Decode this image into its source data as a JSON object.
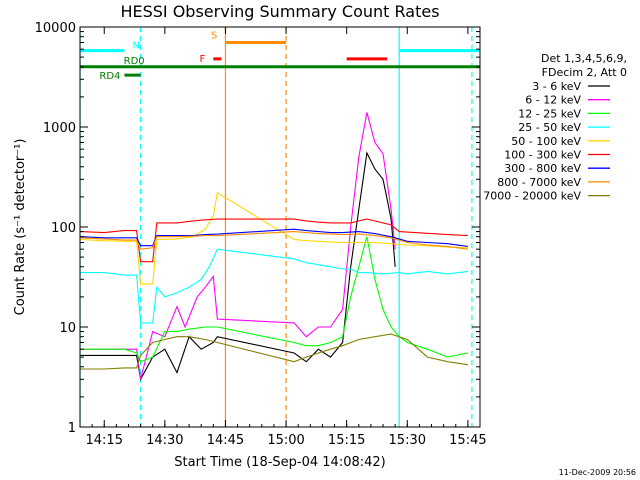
{
  "chart_data": {
    "type": "line",
    "title": "HESSI Observing Summary Count Rates",
    "xlabel": "Start Time (18-Sep-04 14:08:42)",
    "ylabel": "Count Rate (s⁻¹ detector⁻¹)",
    "yscale": "log",
    "ylim": [
      1,
      10000
    ],
    "xlim": [
      "14:09",
      "15:48"
    ],
    "x_ticks": [
      "14:15",
      "14:30",
      "14:45",
      "15:00",
      "15:15",
      "15:30",
      "15:45"
    ],
    "y_ticks": [
      "1",
      "10",
      "100",
      "1000",
      "10000"
    ],
    "legend_header": [
      "Det 1,3,4,5,6,9,",
      "FDecim 2, Att 0"
    ],
    "legend_position": "right",
    "timestamp": "11-Dec-2009 20:56",
    "series": [
      {
        "name": "3 - 6 keV",
        "color": "#000000",
        "points": [
          [
            "14:09",
            5.2
          ],
          [
            "14:20",
            5.2
          ],
          [
            "14:23",
            5.2
          ],
          [
            "14:24",
            3.0
          ],
          [
            "14:27",
            5
          ],
          [
            "14:30",
            6
          ],
          [
            "14:33",
            3.5
          ],
          [
            "14:36",
            8
          ],
          [
            "14:39",
            6
          ],
          [
            "14:42",
            7
          ],
          [
            "14:43",
            8
          ],
          [
            "15:02",
            5.5
          ],
          [
            "15:05",
            4.5
          ],
          [
            "15:08",
            6
          ],
          [
            "15:11",
            5
          ],
          [
            "15:14",
            7
          ],
          [
            "15:16",
            40
          ],
          [
            "15:18",
            150
          ],
          [
            "15:20",
            550
          ],
          [
            "15:22",
            380
          ],
          [
            "15:24",
            300
          ],
          [
            "15:25",
            190
          ],
          [
            "15:26",
            120
          ],
          [
            "15:27",
            40
          ]
        ]
      },
      {
        "name": "6 - 12 keV",
        "color": "#ff00ff",
        "points": [
          [
            "14:09",
            6
          ],
          [
            "14:20",
            6
          ],
          [
            "14:23",
            6
          ],
          [
            "14:24",
            3.0
          ],
          [
            "14:27",
            9
          ],
          [
            "14:30",
            8
          ],
          [
            "14:33",
            16
          ],
          [
            "14:35",
            10
          ],
          [
            "14:38",
            20
          ],
          [
            "14:40",
            25
          ],
          [
            "14:42",
            32
          ],
          [
            "14:43",
            12
          ],
          [
            "15:02",
            11
          ],
          [
            "15:05",
            8
          ],
          [
            "15:08",
            10
          ],
          [
            "15:11",
            10
          ],
          [
            "15:14",
            15
          ],
          [
            "15:16",
            100
          ],
          [
            "15:18",
            500
          ],
          [
            "15:20",
            1400
          ],
          [
            "15:22",
            700
          ],
          [
            "15:24",
            540
          ],
          [
            "15:26",
            150
          ],
          [
            "15:27",
            60
          ]
        ]
      },
      {
        "name": "12 - 25 keV",
        "color": "#00ff00",
        "points": [
          [
            "14:09",
            6
          ],
          [
            "14:20",
            6
          ],
          [
            "14:23",
            5.5
          ],
          [
            "14:24",
            4.5
          ],
          [
            "14:27",
            5
          ],
          [
            "14:30",
            9
          ],
          [
            "14:33",
            9
          ],
          [
            "14:36",
            9.5
          ],
          [
            "14:40",
            10
          ],
          [
            "14:43",
            10
          ],
          [
            "15:02",
            7
          ],
          [
            "15:05",
            6.5
          ],
          [
            "15:08",
            6.5
          ],
          [
            "15:11",
            7
          ],
          [
            "15:14",
            8
          ],
          [
            "15:16",
            20
          ],
          [
            "15:18",
            40
          ],
          [
            "15:20",
            80
          ],
          [
            "15:22",
            30
          ],
          [
            "15:24",
            15
          ],
          [
            "15:26",
            10
          ],
          [
            "15:28",
            8
          ],
          [
            "15:30",
            7
          ],
          [
            "15:35",
            6
          ],
          [
            "15:40",
            5
          ],
          [
            "15:45",
            5.5
          ]
        ]
      },
      {
        "name": "25 - 50 keV",
        "color": "#00ffff",
        "points": [
          [
            "14:09",
            35
          ],
          [
            "14:15",
            35
          ],
          [
            "14:20",
            33
          ],
          [
            "14:23",
            33
          ],
          [
            "14:24",
            11
          ],
          [
            "14:27",
            11
          ],
          [
            "14:28",
            25
          ],
          [
            "14:30",
            20
          ],
          [
            "14:33",
            22
          ],
          [
            "14:36",
            25
          ],
          [
            "14:39",
            30
          ],
          [
            "14:41",
            40
          ],
          [
            "14:43",
            60
          ],
          [
            "15:02",
            48
          ],
          [
            "15:05",
            44
          ],
          [
            "15:08",
            42
          ],
          [
            "15:11",
            40
          ],
          [
            "15:14",
            38
          ],
          [
            "15:16",
            38
          ],
          [
            "15:18",
            35
          ],
          [
            "15:20",
            35
          ],
          [
            "15:24",
            34
          ],
          [
            "15:28",
            35
          ],
          [
            "15:30",
            34
          ],
          [
            "15:35",
            36
          ],
          [
            "15:40",
            34
          ],
          [
            "15:45",
            36
          ]
        ]
      },
      {
        "name": "50 - 100 keV",
        "color": "#ffd700",
        "points": [
          [
            "14:09",
            75
          ],
          [
            "14:15",
            73
          ],
          [
            "14:20",
            72
          ],
          [
            "14:23",
            72
          ],
          [
            "14:24",
            27
          ],
          [
            "14:27",
            27
          ],
          [
            "14:28",
            75
          ],
          [
            "14:33",
            76
          ],
          [
            "14:37",
            80
          ],
          [
            "14:40",
            95
          ],
          [
            "14:42",
            130
          ],
          [
            "14:43",
            220
          ],
          [
            "15:02",
            75
          ],
          [
            "15:05",
            73
          ],
          [
            "15:08",
            72
          ],
          [
            "15:11",
            71
          ],
          [
            "15:14",
            70
          ],
          [
            "15:16",
            70
          ],
          [
            "15:18",
            70
          ],
          [
            "15:22",
            70
          ],
          [
            "15:26",
            68
          ],
          [
            "15:30",
            66
          ],
          [
            "15:35",
            65
          ],
          [
            "15:40",
            63
          ],
          [
            "15:45",
            62
          ]
        ]
      },
      {
        "name": "100 - 300 keV",
        "color": "#ff0000",
        "points": [
          [
            "14:09",
            90
          ],
          [
            "14:15",
            88
          ],
          [
            "14:20",
            92
          ],
          [
            "14:23",
            92
          ],
          [
            "14:24",
            45
          ],
          [
            "14:27",
            45
          ],
          [
            "14:28",
            110
          ],
          [
            "14:33",
            110
          ],
          [
            "14:37",
            115
          ],
          [
            "14:40",
            118
          ],
          [
            "14:43",
            120
          ],
          [
            "15:02",
            120
          ],
          [
            "15:05",
            115
          ],
          [
            "15:08",
            112
          ],
          [
            "15:11",
            110
          ],
          [
            "15:14",
            110
          ],
          [
            "15:16",
            110
          ],
          [
            "15:18",
            115
          ],
          [
            "15:20",
            120
          ],
          [
            "15:22",
            115
          ],
          [
            "15:26",
            105
          ],
          [
            "15:28",
            90
          ],
          [
            "15:32",
            88
          ],
          [
            "15:36",
            86
          ],
          [
            "15:40",
            84
          ],
          [
            "15:45",
            82
          ]
        ]
      },
      {
        "name": "300 - 800 keV",
        "color": "#0000ff",
        "points": [
          [
            "14:09",
            80
          ],
          [
            "14:15",
            78
          ],
          [
            "14:20",
            78
          ],
          [
            "14:23",
            78
          ],
          [
            "14:24",
            65
          ],
          [
            "14:27",
            65
          ],
          [
            "14:28",
            82
          ],
          [
            "14:33",
            82
          ],
          [
            "14:37",
            82
          ],
          [
            "14:40",
            84
          ],
          [
            "14:43",
            85
          ],
          [
            "15:02",
            95
          ],
          [
            "15:05",
            92
          ],
          [
            "15:08",
            90
          ],
          [
            "15:11",
            88
          ],
          [
            "15:14",
            88
          ],
          [
            "15:18",
            90
          ],
          [
            "15:22",
            86
          ],
          [
            "15:26",
            80
          ],
          [
            "15:30",
            72
          ],
          [
            "15:35",
            70
          ],
          [
            "15:40",
            68
          ],
          [
            "15:45",
            64
          ]
        ]
      },
      {
        "name": "800 - 7000 keV",
        "color": "#ff8c00",
        "points": [
          [
            "14:09",
            78
          ],
          [
            "14:15",
            76
          ],
          [
            "14:20",
            74
          ],
          [
            "14:23",
            74
          ],
          [
            "14:24",
            60
          ],
          [
            "14:27",
            62
          ],
          [
            "14:28",
            80
          ],
          [
            "14:33",
            80
          ],
          [
            "14:37",
            81
          ],
          [
            "14:40",
            82
          ],
          [
            "14:43",
            82
          ],
          [
            "15:02",
            90
          ],
          [
            "15:05",
            88
          ],
          [
            "15:08",
            86
          ],
          [
            "15:11",
            85
          ],
          [
            "15:14",
            84
          ],
          [
            "15:18",
            85
          ],
          [
            "15:22",
            82
          ],
          [
            "15:26",
            78
          ],
          [
            "15:30",
            70
          ],
          [
            "15:35",
            66
          ],
          [
            "15:40",
            64
          ],
          [
            "15:45",
            60
          ]
        ]
      },
      {
        "name": "7000 - 20000 keV",
        "color": "#808000",
        "points": [
          [
            "14:09",
            3.8
          ],
          [
            "14:15",
            3.8
          ],
          [
            "14:20",
            3.9
          ],
          [
            "14:23",
            3.9
          ],
          [
            "14:24",
            5.2
          ],
          [
            "14:27",
            7
          ],
          [
            "14:30",
            7.5
          ],
          [
            "14:33",
            8
          ],
          [
            "14:36",
            8
          ],
          [
            "14:40",
            7.5
          ],
          [
            "14:43",
            7
          ],
          [
            "15:02",
            4.5
          ],
          [
            "15:05",
            5
          ],
          [
            "15:08",
            5.5
          ],
          [
            "15:11",
            6
          ],
          [
            "15:14",
            6.5
          ],
          [
            "15:18",
            7.5
          ],
          [
            "15:22",
            8
          ],
          [
            "15:26",
            8.5
          ],
          [
            "15:30",
            7.5
          ],
          [
            "15:35",
            5
          ],
          [
            "15:40",
            4.5
          ],
          [
            "15:45",
            4.2
          ]
        ]
      }
    ],
    "flag_bars": [
      {
        "label": "N",
        "color": "#00ffff",
        "segments": [
          [
            "14:09",
            "14:20"
          ],
          [
            "15:28",
            "15:48"
          ]
        ],
        "level": 5800
      },
      {
        "label": "S",
        "color": "#ff8c00",
        "segments": [
          [
            "14:45",
            "15:00"
          ]
        ],
        "level": 7000
      },
      {
        "label": "F",
        "color": "#ff0000",
        "segments": [
          [
            "14:42",
            "14:44"
          ],
          [
            "15:15",
            "15:25"
          ]
        ],
        "level": 4800
      },
      {
        "label": "RD0",
        "color": "#008000",
        "segments": [
          [
            "14:09",
            "15:48"
          ]
        ],
        "level": 4000
      },
      {
        "label": "RD4",
        "color": "#008000",
        "segments": [
          [
            "14:20",
            "14:24"
          ]
        ],
        "level": 3300
      }
    ],
    "vertical_lines": [
      {
        "time": "14:09",
        "color": "#00ffff",
        "style": "solid"
      },
      {
        "time": "14:24",
        "color": "#00ffff",
        "style": "dashed"
      },
      {
        "time": "14:45",
        "color": "#ff8c00",
        "style": "solid"
      },
      {
        "time": "15:00",
        "color": "#ff8c00",
        "style": "dashed"
      },
      {
        "time": "15:28",
        "color": "#00ffff",
        "style": "solid"
      },
      {
        "time": "15:46",
        "color": "#00ffff",
        "style": "dashed"
      }
    ]
  }
}
